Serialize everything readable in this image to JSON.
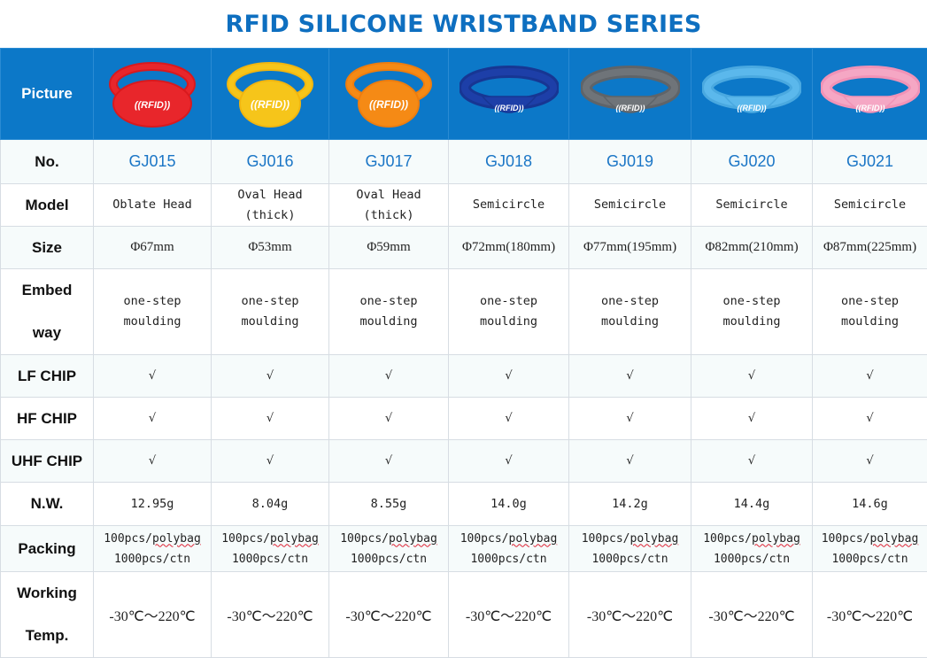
{
  "title": "RFID SILICONE WRISTBAND SERIES",
  "row_labels": {
    "picture": "Picture",
    "no": "No.",
    "model": "Model",
    "size": "Size",
    "embed_1": "Embed",
    "embed_2": "way",
    "lf": "LF CHIP",
    "hf": "HF CHIP",
    "uhf": "UHF CHIP",
    "nw": "N.W.",
    "packing": "Packing",
    "temp_1": "Working",
    "temp_2": "Temp."
  },
  "badge_text": "RFID",
  "tick": "√",
  "products": [
    {
      "no": "GJ015",
      "color": "#e8262b",
      "band": "#d8191e",
      "model_1": "Oblate Head",
      "model_2": "",
      "size": "Φ67mm",
      "embed_1": "one-step",
      "embed_2": "moulding",
      "nw": "12.95g",
      "pack_1": "100pcs/polybag",
      "pack_2": "1000pcs/ctn",
      "temp": "-30℃～220℃"
    },
    {
      "no": "GJ016",
      "color": "#f6c51a",
      "band": "#f2b60f",
      "model_1": "Oval Head",
      "model_2": "(thick)",
      "size": "Φ53mm",
      "embed_1": "one-step",
      "embed_2": "moulding",
      "nw": "8.04g",
      "pack_1": "100pcs/polybag",
      "pack_2": "1000pcs/ctn",
      "temp": "-30℃～220℃"
    },
    {
      "no": "GJ017",
      "color": "#f58a15",
      "band": "#ee7d0e",
      "model_1": "Oval Head",
      "model_2": "(thick)",
      "size": "Φ59mm",
      "embed_1": "one-step",
      "embed_2": "moulding",
      "nw": "8.55g",
      "pack_1": "100pcs/polybag",
      "pack_2": "1000pcs/ctn",
      "temp": "-30℃～220℃"
    },
    {
      "no": "GJ018",
      "color": "#1d3fa8",
      "band": "#173693",
      "model_1": "Semicircle",
      "model_2": "",
      "size": "Φ72mm(180mm)",
      "embed_1": "one-step",
      "embed_2": "moulding",
      "nw": "14.0g",
      "pack_1": "100pcs/polybag",
      "pack_2": "1000pcs/ctn",
      "temp": "-30℃～220℃"
    },
    {
      "no": "GJ019",
      "color": "#6f7479",
      "band": "#5f6469",
      "model_1": "Semicircle",
      "model_2": "",
      "size": "Φ77mm(195mm)",
      "embed_1": "one-step",
      "embed_2": "moulding",
      "nw": "14.2g",
      "pack_1": "100pcs/polybag",
      "pack_2": "1000pcs/ctn",
      "temp": "-30℃～220℃"
    },
    {
      "no": "GJ020",
      "color": "#5bb8ec",
      "band": "#4aa9e0",
      "model_1": "Semicircle",
      "model_2": "",
      "size": "Φ82mm(210mm)",
      "embed_1": "one-step",
      "embed_2": "moulding",
      "nw": "14.4g",
      "pack_1": "100pcs/polybag",
      "pack_2": "1000pcs/ctn",
      "temp": "-30℃～220℃"
    },
    {
      "no": "GJ021",
      "color": "#f5a7c4",
      "band": "#f193b7",
      "model_1": "Semicircle",
      "model_2": "",
      "size": "Φ87mm(225mm)",
      "embed_1": "one-step",
      "embed_2": "moulding",
      "nw": "14.6g",
      "pack_1": "100pcs/polybag",
      "pack_2": "1000pcs/ctn",
      "temp": "-30℃～220℃"
    }
  ]
}
